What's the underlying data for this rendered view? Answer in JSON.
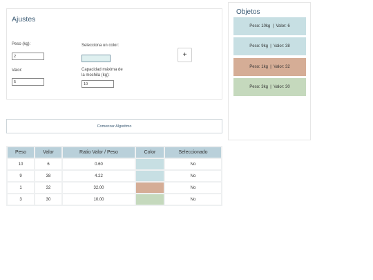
{
  "settings": {
    "title": "Ajustes",
    "weight_label": "Peso (kg):",
    "weight_value": "2",
    "value_label": "Valor:",
    "value_value": "5",
    "color_label": "Selecciona un color:",
    "color_value": "#dff0f0",
    "capacity_label_line1": "Capacidad máxima de",
    "capacity_label_line2": "la mochila (kg):",
    "capacity_value": "10",
    "add_label": "+"
  },
  "objects": {
    "title": "Objetos",
    "items": [
      {
        "label": "Peso: 10kg  |  Valor: 6",
        "color": "#c7dfe3"
      },
      {
        "label": "Peso: 9kg  |  Valor: 38",
        "color": "#c7dfe3"
      },
      {
        "label": "Peso: 1kg  |  Valor: 32",
        "color": "#d5ad96"
      },
      {
        "label": "Peso: 3kg  |  Valor: 30",
        "color": "#c5d9bd"
      }
    ]
  },
  "start_button_label": "Comenzar Algoritmo",
  "table": {
    "headers": [
      "Peso",
      "Valor",
      "Ratio Valor / Peso",
      "Color",
      "Seleccionado"
    ],
    "rows": [
      {
        "peso": "10",
        "valor": "6",
        "ratio": "0.60",
        "color": "#c7dfe3",
        "selected": "No"
      },
      {
        "peso": "9",
        "valor": "38",
        "ratio": "4.22",
        "color": "#c7dfe3",
        "selected": "No"
      },
      {
        "peso": "1",
        "valor": "32",
        "ratio": "32.00",
        "color": "#d5ad96",
        "selected": "No"
      },
      {
        "peso": "3",
        "valor": "30",
        "ratio": "10.00",
        "color": "#c5d9bd",
        "selected": "No"
      }
    ]
  }
}
